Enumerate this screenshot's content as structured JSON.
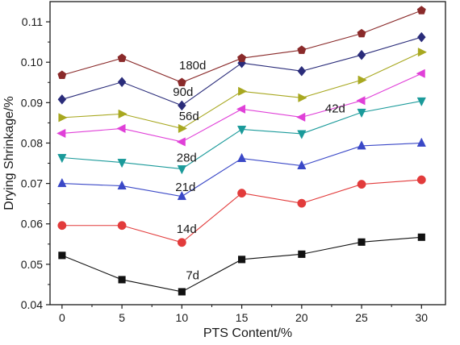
{
  "chart_data": {
    "type": "line",
    "title": "",
    "xlabel": "PTS Content/%",
    "ylabel": "Drying Shrinkage/%",
    "x": [
      0,
      5,
      10,
      15,
      20,
      25,
      30
    ],
    "xlim": [
      -1,
      32
    ],
    "ylim": [
      0.04,
      0.115
    ],
    "xticks": [
      0,
      5,
      10,
      15,
      20,
      25,
      30
    ],
    "yticks": [
      0.04,
      0.05,
      0.06,
      0.07,
      0.08,
      0.09,
      0.1,
      0.11
    ],
    "ytick_labels": [
      "0.04",
      "0.05",
      "0.06",
      "0.07",
      "0.08",
      "0.09",
      "0.10",
      "0.11"
    ],
    "grid": false,
    "legend": "none",
    "series": [
      {
        "name": "7d",
        "marker": "square",
        "color": "#111111",
        "values": [
          0.0522,
          0.0462,
          0.0432,
          0.0512,
          0.0525,
          0.0555,
          0.0567
        ]
      },
      {
        "name": "14d",
        "marker": "circle",
        "color": "#e23b3b",
        "values": [
          0.0596,
          0.0596,
          0.0554,
          0.0676,
          0.0651,
          0.0698,
          0.0709
        ]
      },
      {
        "name": "21d",
        "marker": "triangle-up",
        "color": "#3a48c7",
        "values": [
          0.07,
          0.0694,
          0.0668,
          0.0762,
          0.0744,
          0.0793,
          0.08
        ]
      },
      {
        "name": "28d",
        "marker": "triangle-down",
        "color": "#1a9a9a",
        "values": [
          0.0764,
          0.0752,
          0.0736,
          0.0834,
          0.0823,
          0.0876,
          0.0904
        ]
      },
      {
        "name": "42d",
        "marker": "triangle-left",
        "color": "#e040d8",
        "values": [
          0.0824,
          0.0836,
          0.0803,
          0.0884,
          0.0864,
          0.0905,
          0.0972
        ]
      },
      {
        "name": "56d",
        "marker": "triangle-right",
        "color": "#a8a820",
        "values": [
          0.0863,
          0.0872,
          0.0836,
          0.0928,
          0.0912,
          0.0956,
          0.1025
        ]
      },
      {
        "name": "90d",
        "marker": "diamond",
        "color": "#2a2c7a",
        "values": [
          0.0908,
          0.0951,
          0.0893,
          0.0998,
          0.0978,
          0.1018,
          0.1062
        ]
      },
      {
        "name": "180d",
        "marker": "pentagon",
        "color": "#8a2a2a",
        "values": [
          0.0968,
          0.101,
          0.095,
          0.101,
          0.103,
          0.1071,
          0.1128
        ]
      }
    ],
    "annotations": [
      {
        "text": "180d",
        "x": 10.9,
        "y": 0.0982
      },
      {
        "text": "90d",
        "x": 10.1,
        "y": 0.0917
      },
      {
        "text": "56d",
        "x": 10.6,
        "y": 0.0857
      },
      {
        "text": "42d",
        "x": 22.8,
        "y": 0.0876
      },
      {
        "text": "28d",
        "x": 10.4,
        "y": 0.0754
      },
      {
        "text": "21d",
        "x": 10.3,
        "y": 0.0681
      },
      {
        "text": "14d",
        "x": 10.4,
        "y": 0.0578
      },
      {
        "text": "7d",
        "x": 10.9,
        "y": 0.0463
      }
    ]
  }
}
